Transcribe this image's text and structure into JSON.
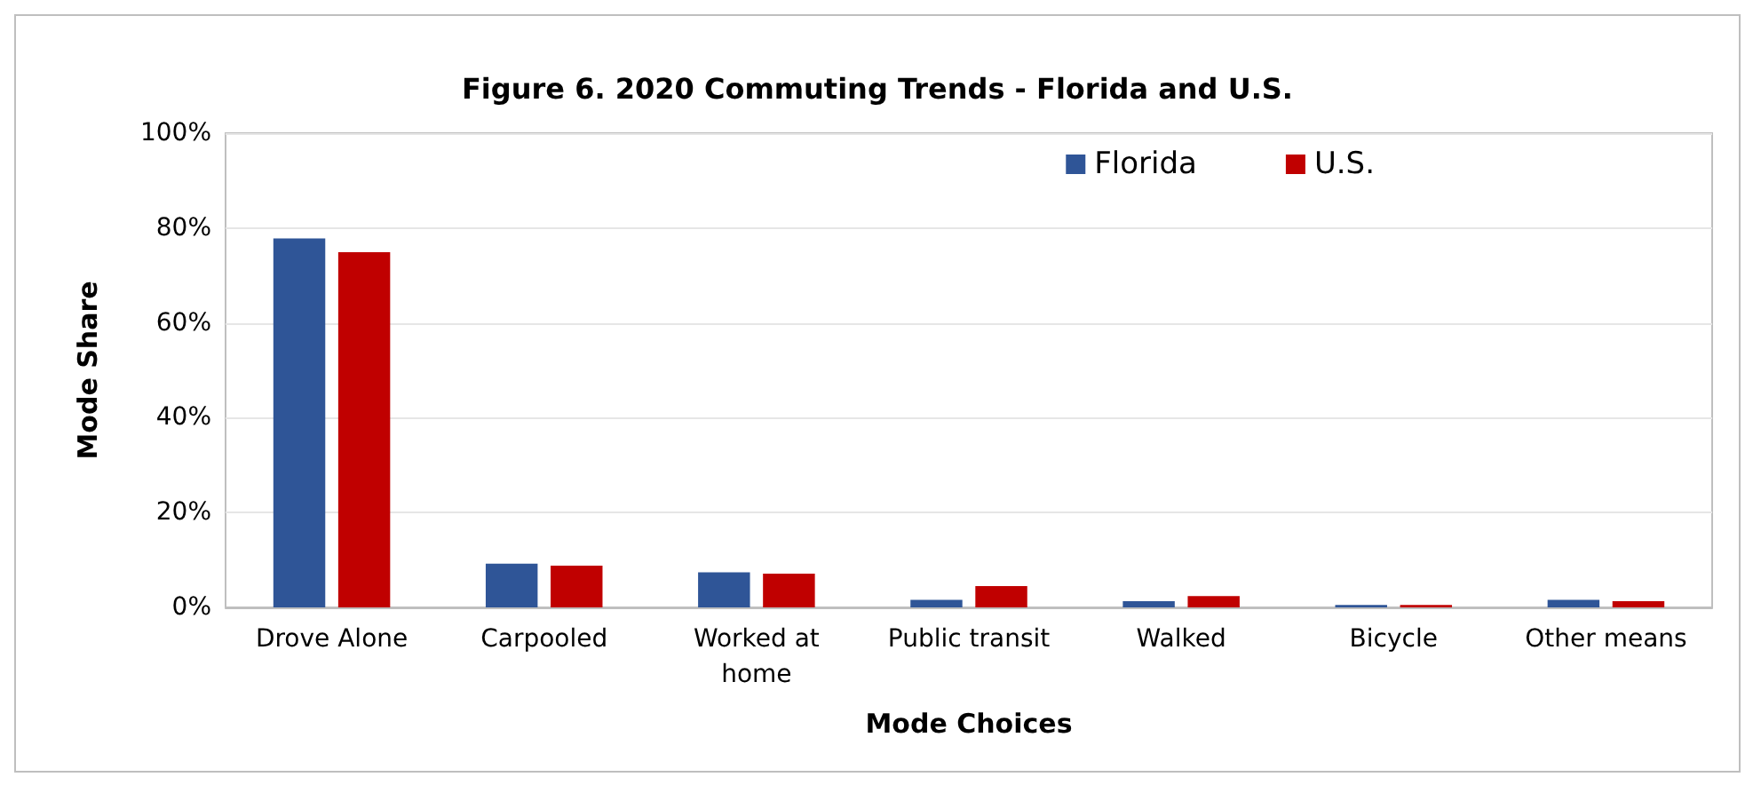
{
  "chart_data": {
    "type": "bar",
    "title": "Figure 6. 2020 Commuting Trends - Florida and U.S.",
    "xlabel": "Mode Choices",
    "ylabel": "Mode Share",
    "categories": [
      "Drove Alone",
      "Carpooled",
      "Worked at\nhome",
      "Public transit",
      "Walked",
      "Bicycle",
      "Other means"
    ],
    "series": [
      {
        "name": "Florida",
        "color": "#2f5597",
        "values": [
          77.8,
          9.2,
          7.4,
          1.6,
          1.3,
          0.5,
          1.6
        ]
      },
      {
        "name": "U.S.",
        "color": "#c00000",
        "values": [
          74.9,
          8.8,
          7.1,
          4.5,
          2.4,
          0.5,
          1.3
        ]
      }
    ],
    "ylim": [
      0,
      100
    ],
    "yticks": [
      {
        "value": 0,
        "label": "0%"
      },
      {
        "value": 20,
        "label": "20%"
      },
      {
        "value": 40,
        "label": "40%"
      },
      {
        "value": 60,
        "label": "60%"
      },
      {
        "value": 80,
        "label": "80%"
      },
      {
        "value": 100,
        "label": "100%"
      }
    ],
    "grid": "y",
    "legend": "top right"
  }
}
